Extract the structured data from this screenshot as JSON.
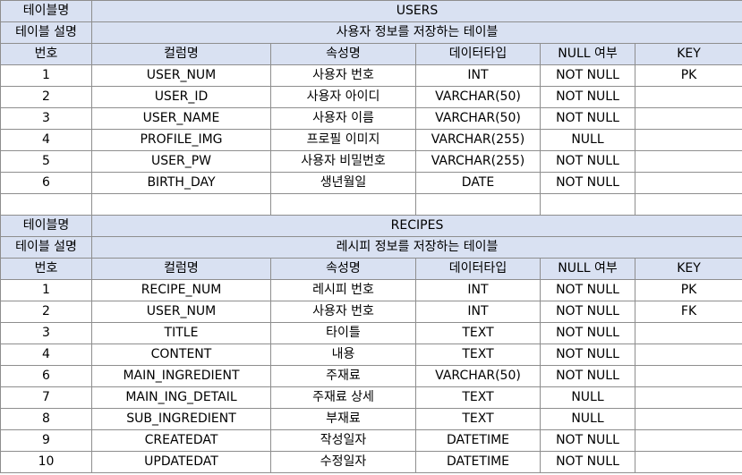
{
  "common": {
    "table_name_label": "테이블명",
    "table_desc_label": "테이블 설명",
    "headers": [
      "번호",
      "컬럼명",
      "속성명",
      "데이터타입",
      "NULL 여부",
      "KEY"
    ]
  },
  "tables": [
    {
      "name": "USERS",
      "desc": "사용자 정보를 저장하는 테이블",
      "rows": [
        [
          "1",
          "USER_NUM",
          "사용자 번호",
          "INT",
          "NOT NULL",
          "PK"
        ],
        [
          "2",
          "USER_ID",
          "사용자 아이디",
          "VARCHAR(50)",
          "NOT NULL",
          ""
        ],
        [
          "3",
          "USER_NAME",
          "사용자 이름",
          "VARCHAR(50)",
          "NOT NULL",
          ""
        ],
        [
          "4",
          "PROFILE_IMG",
          "프로필 이미지",
          "VARCHAR(255)",
          "NULL",
          ""
        ],
        [
          "5",
          "USER_PW",
          "사용자 비밀번호",
          "VARCHAR(255)",
          "NOT NULL",
          ""
        ],
        [
          "6",
          "BIRTH_DAY",
          "생년월일",
          "DATE",
          "NOT NULL",
          ""
        ]
      ]
    },
    {
      "name": "RECIPES",
      "desc": "레시피 정보를 저장하는 테이블",
      "rows": [
        [
          "1",
          "RECIPE_NUM",
          "레시피 번호",
          "INT",
          "NOT NULL",
          "PK"
        ],
        [
          "2",
          "USER_NUM",
          "사용자 번호",
          "INT",
          "NOT NULL",
          "FK"
        ],
        [
          "3",
          "TITLE",
          "타이틀",
          "TEXT",
          "NOT NULL",
          ""
        ],
        [
          "4",
          "CONTENT",
          "내용",
          "TEXT",
          "NOT NULL",
          ""
        ],
        [
          "6",
          "MAIN_INGREDIENT",
          "주재료",
          "VARCHAR(50)",
          "NOT NULL",
          ""
        ],
        [
          "7",
          "MAIN_ING_DETAIL",
          "주재료 상세",
          "TEXT",
          "NULL",
          ""
        ],
        [
          "8",
          "SUB_INGREDIENT",
          "부재료",
          "TEXT",
          "NULL",
          ""
        ],
        [
          "9",
          "CREATEDAT",
          "작성일자",
          "DATETIME",
          "NOT NULL",
          ""
        ],
        [
          "10",
          "UPDATEDAT",
          "수정일자",
          "DATETIME",
          "NOT NULL",
          ""
        ]
      ]
    }
  ]
}
